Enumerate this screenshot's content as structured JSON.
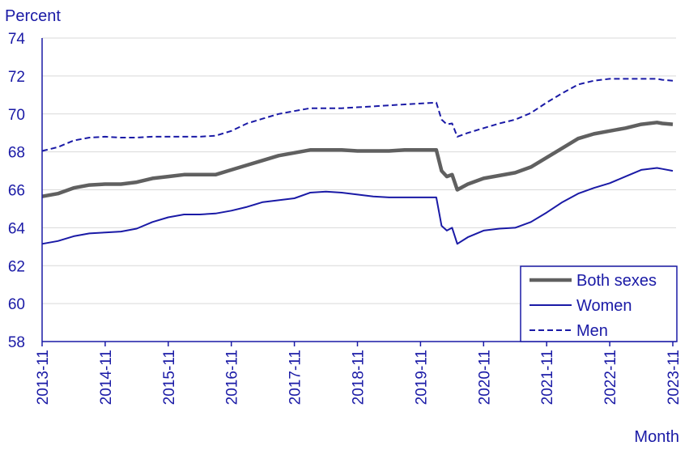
{
  "chart_data": {
    "type": "line",
    "ylabel": "Percent",
    "xlabel": "Month",
    "ylim": [
      58,
      74
    ],
    "yticks": [
      "58",
      "60",
      "62",
      "64",
      "66",
      "68",
      "70",
      "72",
      "74"
    ],
    "xticks": [
      "2013-11",
      "2014-11",
      "2015-11",
      "2016-11",
      "2017-11",
      "2018-11",
      "2019-11",
      "2020-11",
      "2021-11",
      "2022-11",
      "2023-11"
    ],
    "grid": "horizontal",
    "legend_position": "bottom-right",
    "colors": {
      "axis_text": "#1a1aa6",
      "grid": "#d9d9d9",
      "legend_border": "#1a1aa6"
    },
    "series": [
      {
        "name": "Both sexes",
        "color": "#606060",
        "style": "solid-thick",
        "points": [
          [
            "2013-11",
            65.65
          ],
          [
            "2014-02",
            65.8
          ],
          [
            "2014-05",
            66.1
          ],
          [
            "2014-08",
            66.25
          ],
          [
            "2014-11",
            66.3
          ],
          [
            "2015-02",
            66.3
          ],
          [
            "2015-05",
            66.4
          ],
          [
            "2015-08",
            66.6
          ],
          [
            "2015-11",
            66.7
          ],
          [
            "2016-02",
            66.8
          ],
          [
            "2016-05",
            66.8
          ],
          [
            "2016-08",
            66.8
          ],
          [
            "2016-11",
            67.05
          ],
          [
            "2017-02",
            67.3
          ],
          [
            "2017-05",
            67.55
          ],
          [
            "2017-08",
            67.8
          ],
          [
            "2017-11",
            67.95
          ],
          [
            "2018-02",
            68.1
          ],
          [
            "2018-05",
            68.1
          ],
          [
            "2018-08",
            68.1
          ],
          [
            "2018-11",
            68.05
          ],
          [
            "2019-02",
            68.05
          ],
          [
            "2019-05",
            68.05
          ],
          [
            "2019-08",
            68.1
          ],
          [
            "2019-11",
            68.1
          ],
          [
            "2020-02",
            68.1
          ],
          [
            "2020-03",
            67.0
          ],
          [
            "2020-04",
            66.7
          ],
          [
            "2020-05",
            66.8
          ],
          [
            "2020-06",
            66.0
          ],
          [
            "2020-08",
            66.3
          ],
          [
            "2020-11",
            66.6
          ],
          [
            "2021-02",
            66.75
          ],
          [
            "2021-05",
            66.9
          ],
          [
            "2021-08",
            67.2
          ],
          [
            "2021-11",
            67.7
          ],
          [
            "2022-02",
            68.2
          ],
          [
            "2022-05",
            68.7
          ],
          [
            "2022-08",
            68.95
          ],
          [
            "2022-11",
            69.1
          ],
          [
            "2023-02",
            69.25
          ],
          [
            "2023-05",
            69.45
          ],
          [
            "2023-08",
            69.55
          ],
          [
            "2023-09",
            69.5
          ],
          [
            "2023-11",
            69.45
          ]
        ]
      },
      {
        "name": "Women",
        "color": "#1a1aa6",
        "style": "solid",
        "points": [
          [
            "2013-11",
            63.15
          ],
          [
            "2014-02",
            63.3
          ],
          [
            "2014-05",
            63.55
          ],
          [
            "2014-08",
            63.7
          ],
          [
            "2014-11",
            63.75
          ],
          [
            "2015-02",
            63.8
          ],
          [
            "2015-05",
            63.95
          ],
          [
            "2015-08",
            64.3
          ],
          [
            "2015-11",
            64.55
          ],
          [
            "2016-02",
            64.7
          ],
          [
            "2016-05",
            64.7
          ],
          [
            "2016-08",
            64.75
          ],
          [
            "2016-11",
            64.9
          ],
          [
            "2017-02",
            65.1
          ],
          [
            "2017-05",
            65.35
          ],
          [
            "2017-08",
            65.45
          ],
          [
            "2017-11",
            65.55
          ],
          [
            "2018-02",
            65.85
          ],
          [
            "2018-05",
            65.9
          ],
          [
            "2018-08",
            65.85
          ],
          [
            "2018-11",
            65.75
          ],
          [
            "2019-02",
            65.65
          ],
          [
            "2019-05",
            65.6
          ],
          [
            "2019-08",
            65.6
          ],
          [
            "2019-11",
            65.6
          ],
          [
            "2020-02",
            65.6
          ],
          [
            "2020-03",
            64.1
          ],
          [
            "2020-04",
            63.85
          ],
          [
            "2020-05",
            64.0
          ],
          [
            "2020-06",
            63.15
          ],
          [
            "2020-08",
            63.5
          ],
          [
            "2020-11",
            63.85
          ],
          [
            "2021-02",
            63.95
          ],
          [
            "2021-05",
            64.0
          ],
          [
            "2021-08",
            64.3
          ],
          [
            "2021-11",
            64.8
          ],
          [
            "2022-02",
            65.35
          ],
          [
            "2022-05",
            65.8
          ],
          [
            "2022-08",
            66.1
          ],
          [
            "2022-11",
            66.35
          ],
          [
            "2023-02",
            66.7
          ],
          [
            "2023-05",
            67.05
          ],
          [
            "2023-08",
            67.15
          ],
          [
            "2023-09",
            67.1
          ],
          [
            "2023-11",
            67.0
          ]
        ]
      },
      {
        "name": "Men",
        "color": "#1a1aa6",
        "style": "dashed",
        "points": [
          [
            "2013-11",
            68.05
          ],
          [
            "2014-02",
            68.25
          ],
          [
            "2014-05",
            68.6
          ],
          [
            "2014-08",
            68.75
          ],
          [
            "2014-11",
            68.8
          ],
          [
            "2015-02",
            68.75
          ],
          [
            "2015-05",
            68.75
          ],
          [
            "2015-08",
            68.8
          ],
          [
            "2015-11",
            68.8
          ],
          [
            "2016-02",
            68.8
          ],
          [
            "2016-05",
            68.8
          ],
          [
            "2016-08",
            68.85
          ],
          [
            "2016-11",
            69.1
          ],
          [
            "2017-02",
            69.5
          ],
          [
            "2017-05",
            69.75
          ],
          [
            "2017-08",
            70.0
          ],
          [
            "2017-11",
            70.15
          ],
          [
            "2018-02",
            70.3
          ],
          [
            "2018-05",
            70.3
          ],
          [
            "2018-08",
            70.3
          ],
          [
            "2018-11",
            70.35
          ],
          [
            "2019-02",
            70.4
          ],
          [
            "2019-05",
            70.45
          ],
          [
            "2019-08",
            70.5
          ],
          [
            "2019-11",
            70.55
          ],
          [
            "2020-02",
            70.6
          ],
          [
            "2020-03",
            69.7
          ],
          [
            "2020-04",
            69.45
          ],
          [
            "2020-05",
            69.5
          ],
          [
            "2020-06",
            68.8
          ],
          [
            "2020-08",
            69.0
          ],
          [
            "2020-11",
            69.25
          ],
          [
            "2021-02",
            69.5
          ],
          [
            "2021-05",
            69.7
          ],
          [
            "2021-08",
            70.05
          ],
          [
            "2021-11",
            70.6
          ],
          [
            "2022-02",
            71.1
          ],
          [
            "2022-05",
            71.55
          ],
          [
            "2022-08",
            71.75
          ],
          [
            "2022-11",
            71.85
          ],
          [
            "2023-02",
            71.85
          ],
          [
            "2023-05",
            71.85
          ],
          [
            "2023-08",
            71.85
          ],
          [
            "2023-09",
            71.8
          ],
          [
            "2023-11",
            71.75
          ]
        ]
      }
    ]
  }
}
